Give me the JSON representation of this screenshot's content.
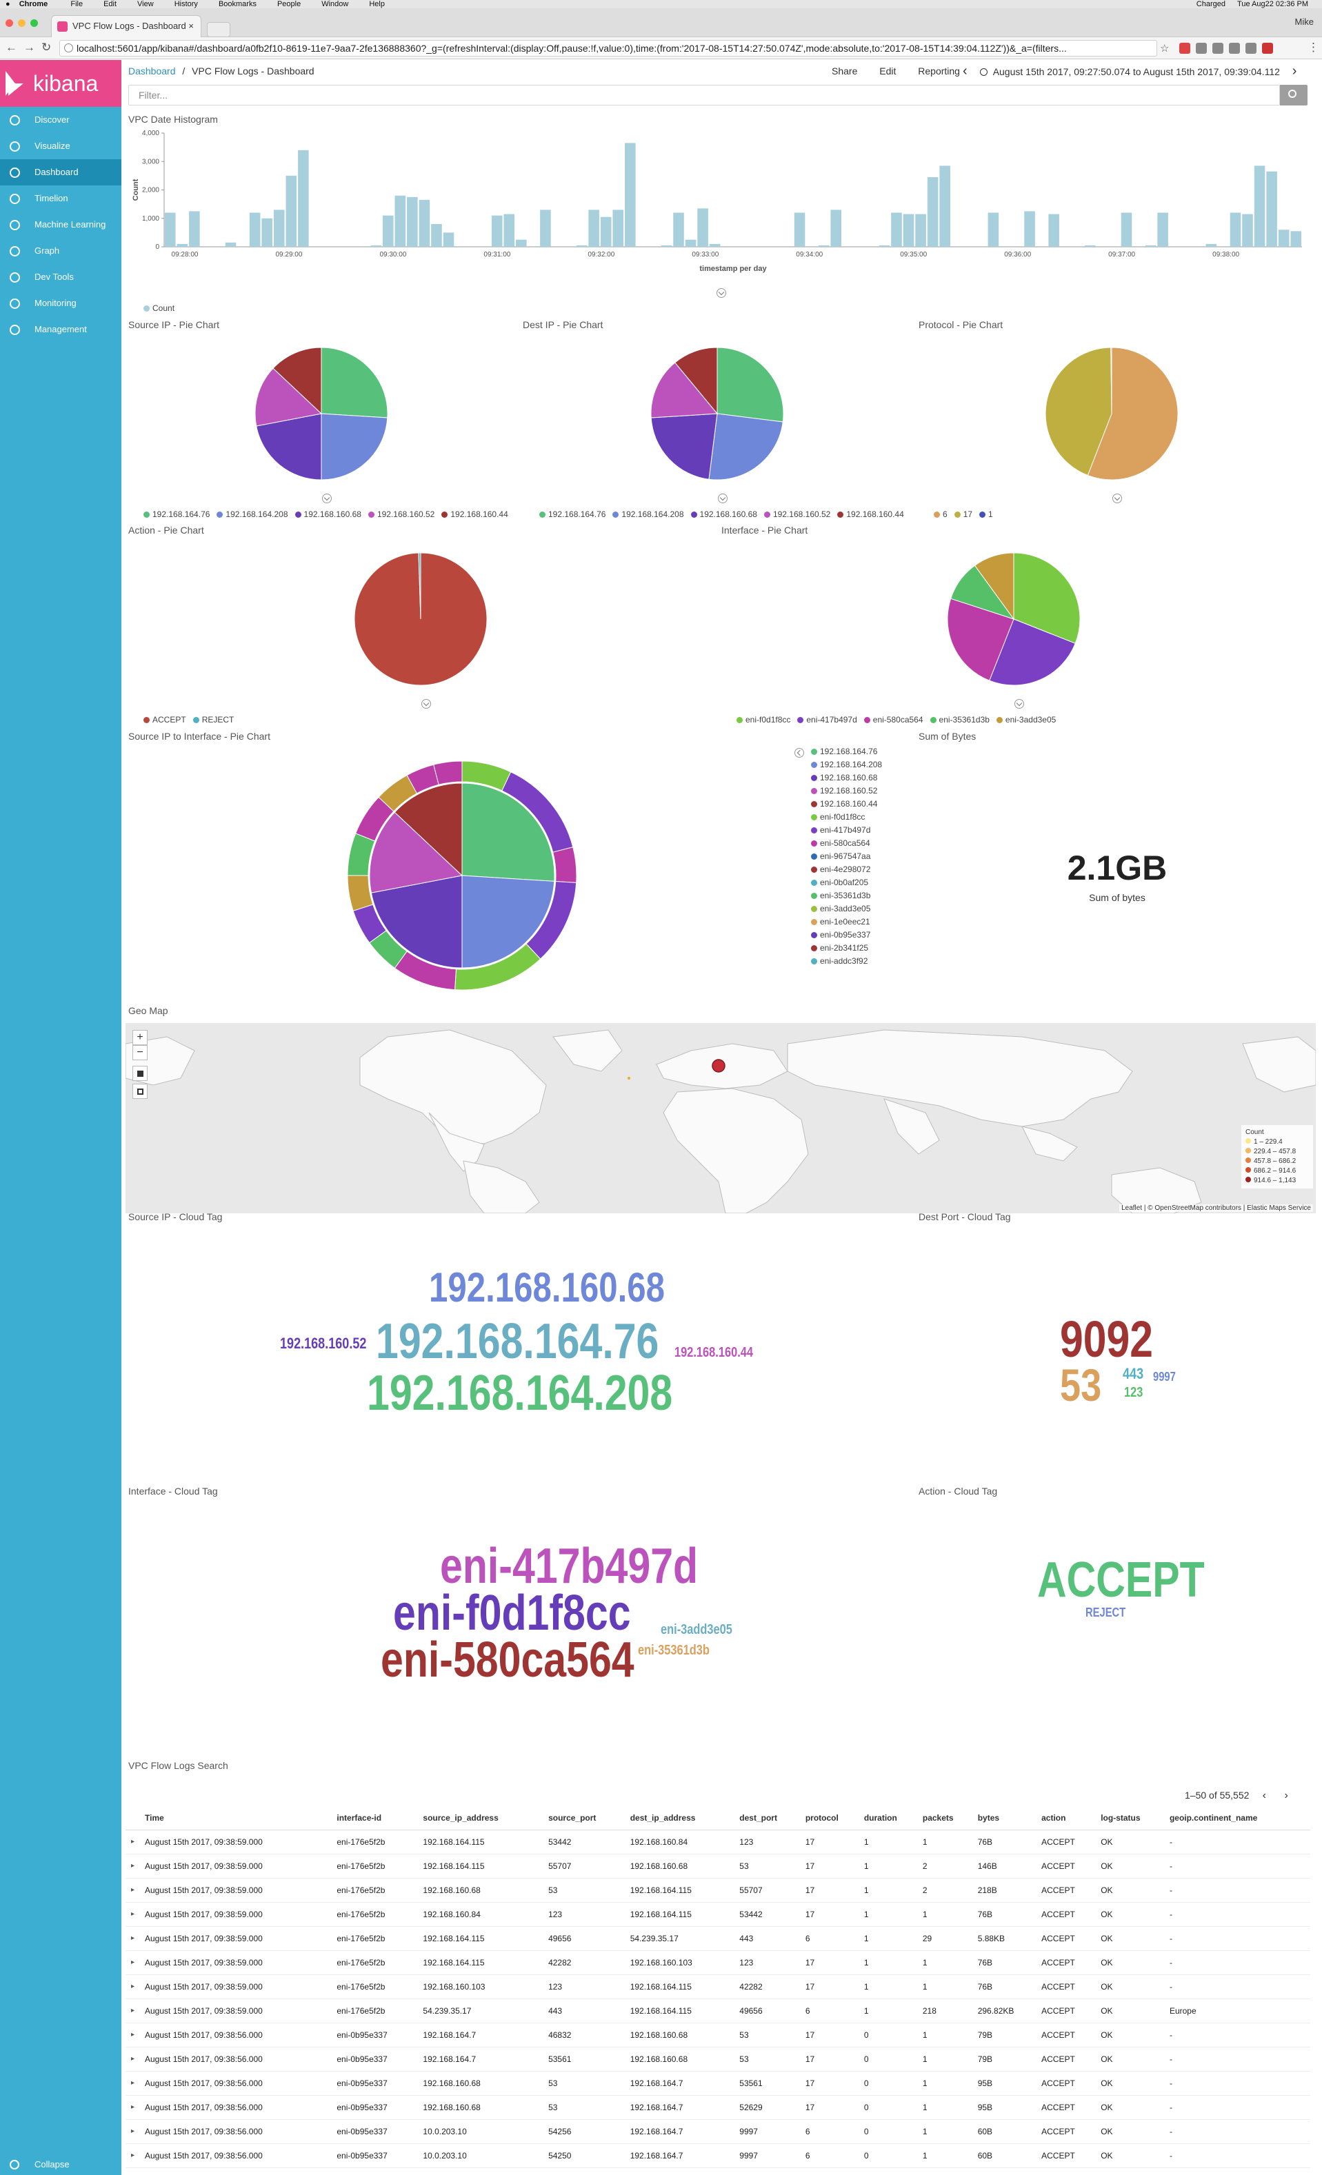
{
  "macbar": {
    "apple": "",
    "app": "Chrome",
    "menus": [
      "File",
      "Edit",
      "View",
      "History",
      "Bookmarks",
      "People",
      "Window",
      "Help"
    ],
    "battery": "Charged",
    "clock": "Tue Aug22 02:36 PM"
  },
  "browser": {
    "tab_title": "VPC Flow Logs - Dashboard",
    "tab_close": "×",
    "profile": "Mike",
    "url": "localhost:5601/app/kibana#/dashboard/a0fb2f10-8619-11e7-9aa7-2fe136888360?_g=(refreshInterval:(display:Off,pause:!f,value:0),time:(from:'2017-08-15T14:27:50.074Z',mode:absolute,to:'2017-08-15T14:39:04.112Z'))&_a=(filters...",
    "back": "←",
    "forward": "→",
    "reload": "↻",
    "star": "☆",
    "menu": "⋮"
  },
  "sidebar": {
    "brand": "kibana",
    "items": [
      {
        "label": "Discover",
        "icon": "compass-icon"
      },
      {
        "label": "Visualize",
        "icon": "bar-chart-icon"
      },
      {
        "label": "Dashboard",
        "icon": "dashboard-icon"
      },
      {
        "label": "Timelion",
        "icon": "timelion-icon"
      },
      {
        "label": "Machine Learning",
        "icon": "ml-icon"
      },
      {
        "label": "Graph",
        "icon": "graph-icon"
      },
      {
        "label": "Dev Tools",
        "icon": "wrench-icon"
      },
      {
        "label": "Monitoring",
        "icon": "eye-icon"
      },
      {
        "label": "Management",
        "icon": "gear-icon"
      }
    ],
    "collapse": "Collapse"
  },
  "topnav": {
    "crumb_root": "Dashboard",
    "crumb_sep": "/",
    "crumb_current": "VPC Flow Logs - Dashboard",
    "share": "Share",
    "edit": "Edit",
    "reporting": "Reporting",
    "prev": "‹",
    "next": "›",
    "time_range": "August 15th 2017, 09:27:50.074 to August 15th 2017, 09:39:04.112"
  },
  "filter": {
    "placeholder": "Filter..."
  },
  "panels": {
    "histogram": "VPC Date Histogram",
    "src_pie": "Source IP - Pie Chart",
    "dst_pie": "Dest IP - Pie Chart",
    "proto_pie": "Protocol - Pie Chart",
    "action_pie": "Action - Pie Chart",
    "iface_pie": "Interface - Pie Chart",
    "src_iface_pie": "Source IP to Interface - Pie Chart",
    "sum_bytes": "Sum of Bytes",
    "geo": "Geo Map",
    "src_tag": "Source IP - Cloud Tag",
    "dport_tag": "Dest Port - Cloud Tag",
    "iface_tag": "Interface - Cloud Tag",
    "action_tag": "Action - Cloud Tag",
    "search": "VPC Flow Logs Search"
  },
  "colors": {
    "ip76": "#57c17b",
    "ip208": "#6f87d8",
    "ip68": "#663db8",
    "ip52": "#bc52bc",
    "ip44": "#9e3533",
    "p6": "#daa05d",
    "p17": "#bfaf40",
    "p1": "#4050bf",
    "accept": "#b9473b",
    "reject": "#51b0c2",
    "f0d1": "#7ac943",
    "b497": "#7b3fc4",
    "a564": "#bc3ca7",
    "d3b": "#56c068",
    "e05": "#c49a3a"
  },
  "chart_data": [
    {
      "type": "bar",
      "title": "",
      "ylabel": "Count",
      "xlabel": "timestamp per day",
      "ylim": [
        0,
        4000
      ],
      "yticks": [
        "0",
        "1,000",
        "2,000",
        "3,000",
        "4,000"
      ],
      "xticks": [
        "09:28:00",
        "09:29:00",
        "09:30:00",
        "09:31:00",
        "09:32:00",
        "09:33:00",
        "09:34:00",
        "09:35:00",
        "09:36:00",
        "09:37:00",
        "09:38:00"
      ],
      "legend": [
        "Count"
      ],
      "values": [
        1200,
        100,
        1250,
        0,
        0,
        150,
        0,
        1200,
        1000,
        1300,
        2500,
        3400,
        0,
        0,
        0,
        0,
        0,
        50,
        1100,
        1800,
        1750,
        1650,
        800,
        500,
        0,
        0,
        0,
        1100,
        1150,
        250,
        0,
        1300,
        0,
        0,
        50,
        1300,
        1050,
        1300,
        3650,
        0,
        0,
        50,
        1200,
        250,
        1350,
        100,
        0,
        0,
        0,
        0,
        0,
        0,
        1200,
        0,
        50,
        1300,
        0,
        0,
        0,
        50,
        1200,
        1150,
        1150,
        2450,
        2850,
        0,
        0,
        0,
        1200,
        0,
        0,
        1250,
        0,
        1150,
        0,
        0,
        50,
        0,
        0,
        1200,
        0,
        50,
        1200,
        0,
        0,
        0,
        100,
        0,
        1200,
        1150,
        2850,
        2650,
        600,
        550
      ]
    },
    {
      "type": "pie",
      "title": "Source IP - Pie Chart",
      "slices": [
        {
          "label": "192.168.164.76",
          "value": 26
        },
        {
          "label": "192.168.164.208",
          "value": 24
        },
        {
          "label": "192.168.160.68",
          "value": 22
        },
        {
          "label": "192.168.160.52",
          "value": 15
        },
        {
          "label": "192.168.160.44",
          "value": 13
        }
      ]
    },
    {
      "type": "pie",
      "title": "Dest IP - Pie Chart",
      "slices": [
        {
          "label": "192.168.164.76",
          "value": 27
        },
        {
          "label": "192.168.164.208",
          "value": 25
        },
        {
          "label": "192.168.160.68",
          "value": 22
        },
        {
          "label": "192.168.160.52",
          "value": 15
        },
        {
          "label": "192.168.160.44",
          "value": 11
        }
      ]
    },
    {
      "type": "pie",
      "title": "Protocol - Pie Chart",
      "slices": [
        {
          "label": "6",
          "value": 56
        },
        {
          "label": "17",
          "value": 44
        },
        {
          "label": "1",
          "value": 0.2
        }
      ]
    },
    {
      "type": "pie",
      "title": "Action - Pie Chart",
      "slices": [
        {
          "label": "ACCEPT",
          "value": 99.5
        },
        {
          "label": "REJECT",
          "value": 0.5
        }
      ]
    },
    {
      "type": "pie",
      "title": "Interface - Pie Chart",
      "slices": [
        {
          "label": "eni-f0d1f8cc",
          "value": 31
        },
        {
          "label": "eni-417b497d",
          "value": 25
        },
        {
          "label": "eni-580ca564",
          "value": 24
        },
        {
          "label": "eni-35361d3b",
          "value": 10
        },
        {
          "label": "eni-3add3e05",
          "value": 10
        }
      ]
    },
    {
      "type": "pie",
      "title": "Source IP to Interface - Pie Chart",
      "legend": [
        "192.168.164.76",
        "192.168.164.208",
        "192.168.160.68",
        "192.168.160.52",
        "192.168.160.44",
        "eni-f0d1f8cc",
        "eni-417b497d",
        "eni-580ca564",
        "eni-967547aa",
        "eni-4e298072",
        "eni-0b0af205",
        "eni-35361d3b",
        "eni-3add3e05",
        "eni-1e0eec21",
        "eni-0b95e337",
        "eni-2b341f25",
        "eni-addc3f92"
      ]
    }
  ],
  "legend_colors": [
    "#57c17b",
    "#6f87d8",
    "#663db8",
    "#bc52bc",
    "#9e3533",
    "#7ac943",
    "#7b3fc4",
    "#bc3ca7",
    "#2f6ab8",
    "#9e3533",
    "#51b0c2",
    "#56c068",
    "#9dbf40",
    "#d9a45a",
    "#663db8",
    "#9e3533",
    "#51b0c2"
  ],
  "metric": {
    "value": "2.1GB",
    "label": "Sum of bytes"
  },
  "map": {
    "zoom_in": "+",
    "zoom_out": "−",
    "legend_title": "Count",
    "legend": [
      "1 – 229.4",
      "229.4 – 457.8",
      "457.8 – 686.2",
      "686.2 – 914.6",
      "914.6 – 1,143"
    ],
    "legend_colors": [
      "#fde68a",
      "#f4b860",
      "#e6803a",
      "#cf4b2a",
      "#a01f1f"
    ],
    "attribution": "Leaflet | © OpenStreetMap contributors | Elastic Maps Service"
  },
  "src_tags": [
    "192.168.160.68",
    "192.168.160.52",
    "192.168.164.76",
    "192.168.160.44",
    "192.168.164.208"
  ],
  "port_tags": [
    "9092",
    "53",
    "443",
    "9997",
    "123"
  ],
  "iface_tags": [
    "eni-417b497d",
    "eni-f0d1f8cc",
    "eni-3add3e05",
    "eni-580ca564",
    "eni-35361d3b"
  ],
  "action_tags": [
    "ACCEPT",
    "REJECT"
  ],
  "table": {
    "pager": "1–50 of 55,552",
    "prev": "‹",
    "next": "›",
    "columns": [
      "Time",
      "interface-id",
      "source_ip_address",
      "source_port",
      "dest_ip_address",
      "dest_port",
      "protocol",
      "duration",
      "packets",
      "bytes",
      "action",
      "log-status",
      "geoip.continent_name"
    ],
    "rows": [
      [
        "August 15th 2017, 09:38:59.000",
        "eni-176e5f2b",
        "192.168.164.115",
        "53442",
        "192.168.160.84",
        "123",
        "17",
        "1",
        "1",
        "76B",
        "ACCEPT",
        "OK",
        "-"
      ],
      [
        "August 15th 2017, 09:38:59.000",
        "eni-176e5f2b",
        "192.168.164.115",
        "55707",
        "192.168.160.68",
        "53",
        "17",
        "1",
        "2",
        "146B",
        "ACCEPT",
        "OK",
        "-"
      ],
      [
        "August 15th 2017, 09:38:59.000",
        "eni-176e5f2b",
        "192.168.160.68",
        "53",
        "192.168.164.115",
        "55707",
        "17",
        "1",
        "2",
        "218B",
        "ACCEPT",
        "OK",
        "-"
      ],
      [
        "August 15th 2017, 09:38:59.000",
        "eni-176e5f2b",
        "192.168.160.84",
        "123",
        "192.168.164.115",
        "53442",
        "17",
        "1",
        "1",
        "76B",
        "ACCEPT",
        "OK",
        "-"
      ],
      [
        "August 15th 2017, 09:38:59.000",
        "eni-176e5f2b",
        "192.168.164.115",
        "49656",
        "54.239.35.17",
        "443",
        "6",
        "1",
        "29",
        "5.88KB",
        "ACCEPT",
        "OK",
        "-"
      ],
      [
        "August 15th 2017, 09:38:59.000",
        "eni-176e5f2b",
        "192.168.164.115",
        "42282",
        "192.168.160.103",
        "123",
        "17",
        "1",
        "1",
        "76B",
        "ACCEPT",
        "OK",
        "-"
      ],
      [
        "August 15th 2017, 09:38:59.000",
        "eni-176e5f2b",
        "192.168.160.103",
        "123",
        "192.168.164.115",
        "42282",
        "17",
        "1",
        "1",
        "76B",
        "ACCEPT",
        "OK",
        "-"
      ],
      [
        "August 15th 2017, 09:38:59.000",
        "eni-176e5f2b",
        "54.239.35.17",
        "443",
        "192.168.164.115",
        "49656",
        "6",
        "1",
        "218",
        "296.82KB",
        "ACCEPT",
        "OK",
        "Europe"
      ],
      [
        "August 15th 2017, 09:38:56.000",
        "eni-0b95e337",
        "192.168.164.7",
        "46832",
        "192.168.160.68",
        "53",
        "17",
        "0",
        "1",
        "79B",
        "ACCEPT",
        "OK",
        "-"
      ],
      [
        "August 15th 2017, 09:38:56.000",
        "eni-0b95e337",
        "192.168.164.7",
        "53561",
        "192.168.160.68",
        "53",
        "17",
        "0",
        "1",
        "79B",
        "ACCEPT",
        "OK",
        "-"
      ],
      [
        "August 15th 2017, 09:38:56.000",
        "eni-0b95e337",
        "192.168.160.68",
        "53",
        "192.168.164.7",
        "53561",
        "17",
        "0",
        "1",
        "95B",
        "ACCEPT",
        "OK",
        "-"
      ],
      [
        "August 15th 2017, 09:38:56.000",
        "eni-0b95e337",
        "192.168.160.68",
        "53",
        "192.168.164.7",
        "52629",
        "17",
        "0",
        "1",
        "95B",
        "ACCEPT",
        "OK",
        "-"
      ],
      [
        "August 15th 2017, 09:38:56.000",
        "eni-0b95e337",
        "10.0.203.10",
        "54256",
        "192.168.164.7",
        "9997",
        "6",
        "0",
        "1",
        "60B",
        "ACCEPT",
        "OK",
        "-"
      ],
      [
        "August 15th 2017, 09:38:56.000",
        "eni-0b95e337",
        "10.0.203.10",
        "54250",
        "192.168.164.7",
        "9997",
        "6",
        "0",
        "1",
        "60B",
        "ACCEPT",
        "OK",
        "-"
      ]
    ]
  }
}
